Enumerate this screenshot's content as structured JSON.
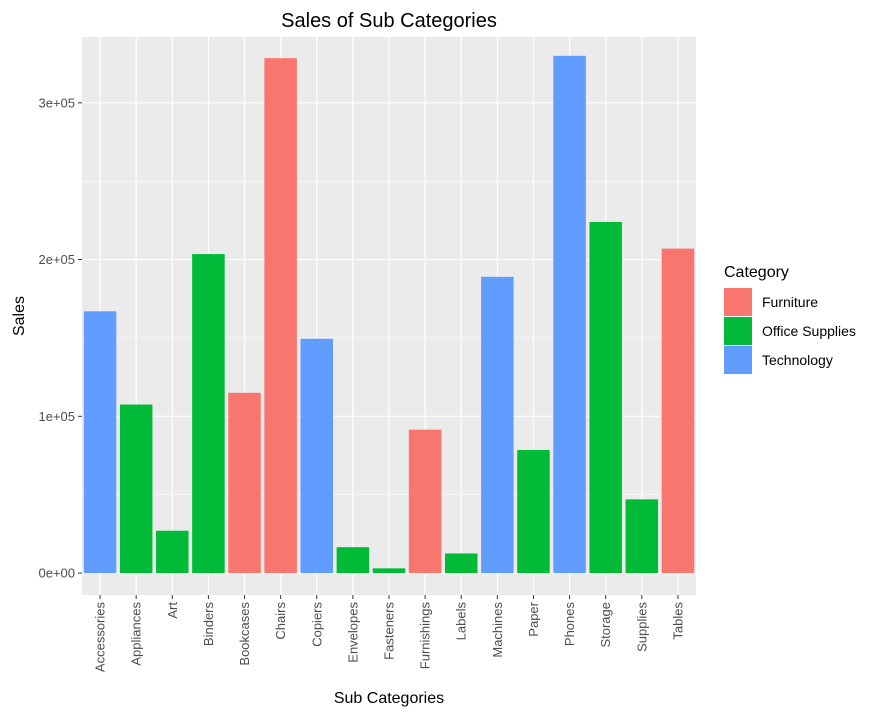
{
  "chart_data": {
    "type": "bar",
    "title": "Sales of Sub Categories",
    "xlabel": "Sub Categories",
    "ylabel": "Sales",
    "ylim": [
      -14000,
      342000
    ],
    "yticks": [
      0,
      100000,
      200000,
      300000
    ],
    "ytick_labels": [
      "0e+00",
      "1e+05",
      "2e+05",
      "3e+05"
    ],
    "grid": true,
    "legend": {
      "title": "Category",
      "placement": "right",
      "items": [
        {
          "name": "Furniture",
          "color": "#F8766D"
        },
        {
          "name": "Office Supplies",
          "color": "#00BA38"
        },
        {
          "name": "Technology",
          "color": "#619CFF"
        }
      ]
    },
    "categories": [
      "Accessories",
      "Appliances",
      "Art",
      "Binders",
      "Bookcases",
      "Chairs",
      "Copiers",
      "Envelopes",
      "Fasteners",
      "Furnishings",
      "Labels",
      "Machines",
      "Paper",
      "Phones",
      "Storage",
      "Supplies",
      "Tables"
    ],
    "values": [
      167000,
      107500,
      27000,
      203500,
      115000,
      328500,
      149500,
      16500,
      3000,
      91500,
      12500,
      189000,
      78500,
      330000,
      224000,
      47000,
      207000
    ],
    "bar_groups": [
      "Technology",
      "Office Supplies",
      "Office Supplies",
      "Office Supplies",
      "Furniture",
      "Furniture",
      "Technology",
      "Office Supplies",
      "Office Supplies",
      "Furniture",
      "Office Supplies",
      "Technology",
      "Office Supplies",
      "Technology",
      "Office Supplies",
      "Office Supplies",
      "Furniture"
    ]
  }
}
